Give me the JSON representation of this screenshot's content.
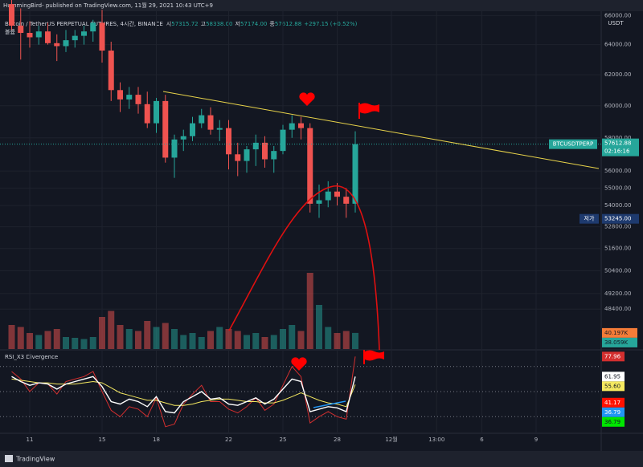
{
  "header": {
    "published": "HummingBird- published on TradingView.com, 11월 29, 2021 10:43 UTC+9"
  },
  "legend": {
    "symbol": "Bitcoin / TetherUS PERPETUAL FUTURES, 4시간, BINANCE",
    "open_label": "시",
    "open": "57315.72",
    "high_label": "고",
    "high": "58338.00",
    "low_label": "저",
    "low": "57174.00",
    "close_label": "종",
    "close": "57612.88",
    "change": "+297.15 (+0.52%)",
    "volume_label": "볼륨"
  },
  "footer": {
    "brand": "TradingView"
  },
  "chart_data": {
    "type": "candlestick",
    "scale": "log",
    "up_color": "#26a69a",
    "down_color": "#ef5350",
    "grid": true,
    "categories": [
      null,
      null,
      "11",
      null,
      null,
      null,
      null,
      null,
      null,
      null,
      "15",
      null,
      null,
      null,
      null,
      null,
      "18",
      null,
      null,
      null,
      null,
      null,
      null,
      null,
      "22",
      null,
      null,
      null,
      null,
      null,
      "25",
      null,
      null,
      null,
      null,
      null,
      "28",
      null,
      null,
      null,
      null,
      null,
      "12월",
      null,
      null,
      null,
      null,
      "13:00",
      null,
      null,
      null,
      null,
      "6",
      null,
      null,
      null,
      null,
      null,
      "9",
      null,
      null
    ],
    "open": [
      66800,
      65300,
      64800,
      64500,
      64900,
      64100,
      63900,
      64300,
      64600,
      64900,
      65500,
      63600,
      61000,
      60400,
      60700,
      60100,
      58900,
      60300,
      56800,
      57900,
      58100,
      58900,
      59400,
      58500,
      58600,
      57000,
      56600,
      57300,
      57700,
      56700,
      57200,
      58500,
      58900,
      58600,
      54100,
      54300,
      54800,
      54500,
      54100,
      null,
      null,
      null,
      null,
      null,
      null,
      null,
      null,
      null,
      null,
      null,
      null,
      null,
      null,
      null,
      null,
      null,
      null,
      null,
      null,
      null,
      null
    ],
    "high": [
      68500,
      66500,
      65600,
      65300,
      65500,
      64700,
      65000,
      65000,
      65300,
      65700,
      66400,
      64200,
      61500,
      61200,
      61200,
      60900,
      60500,
      60700,
      58200,
      58500,
      59300,
      59800,
      59900,
      59100,
      59100,
      57700,
      57500,
      58200,
      58100,
      57500,
      58800,
      59400,
      59300,
      58900,
      55200,
      55400,
      55300,
      55000,
      58400,
      null,
      null,
      null,
      null,
      null,
      null,
      null,
      null,
      null,
      null,
      null,
      null,
      null,
      null,
      null,
      null,
      null,
      null,
      null,
      null,
      null,
      null
    ],
    "low": [
      65000,
      63000,
      63800,
      64000,
      64000,
      62900,
      63500,
      63800,
      64000,
      64200,
      62800,
      60300,
      59600,
      59800,
      59500,
      58600,
      58300,
      56500,
      55600,
      57200,
      57800,
      58600,
      58200,
      57800,
      56100,
      55700,
      55900,
      56300,
      56200,
      55900,
      57000,
      58000,
      57900,
      53600,
      53300,
      53900,
      54000,
      53300,
      53600,
      null,
      null,
      null,
      null,
      null,
      null,
      null,
      null,
      null,
      null,
      null,
      null,
      null,
      null,
      null,
      null,
      null,
      null,
      null,
      null,
      null,
      null
    ],
    "close": [
      65300,
      64800,
      64500,
      64900,
      64100,
      63900,
      64300,
      64600,
      64900,
      65500,
      63600,
      61000,
      60400,
      60700,
      60100,
      58900,
      60300,
      56800,
      57900,
      58100,
      58900,
      59400,
      58500,
      58600,
      57000,
      56600,
      57300,
      57700,
      56700,
      57200,
      58500,
      58900,
      58600,
      54100,
      54300,
      54800,
      54500,
      54100,
      57612.88,
      null,
      null,
      null,
      null,
      null,
      null,
      null,
      null,
      null,
      null,
      null,
      null,
      null,
      null,
      null,
      null,
      null,
      null,
      null,
      null,
      null,
      null
    ],
    "ylim": [
      46400,
      66300
    ],
    "y_unit": "USDT",
    "yticks": [
      {
        "value": 66000,
        "label": "66000.00"
      },
      {
        "value": 64000,
        "label": "64000.00"
      },
      {
        "value": 62000,
        "label": "62000.00"
      },
      {
        "value": 60000,
        "label": "60000.00"
      },
      {
        "value": 58000,
        "label": "58000.00"
      },
      {
        "value": 56000,
        "label": "56000.00"
      },
      {
        "value": 55000,
        "label": "55000.00"
      },
      {
        "value": 54000,
        "label": "54000.00"
      },
      {
        "value": 52800,
        "label": "52800.00"
      },
      {
        "value": 51600,
        "label": "51600.00"
      },
      {
        "value": 50400,
        "label": "50400.00"
      },
      {
        "value": 49200,
        "label": "49200.00"
      },
      {
        "value": 48400,
        "label": "48400.00"
      }
    ],
    "last_price": 57612.88,
    "symbol_tag": "BTCUSDTPERP",
    "countdown": "02:16:16",
    "low_marker": {
      "label": "저가",
      "value": 53245,
      "value_label": "53245.00"
    },
    "volume": {
      "ylim": [
        0,
        200000
      ],
      "values": [
        60000,
        55000,
        40000,
        35000,
        45000,
        50000,
        30000,
        28000,
        25000,
        30000,
        80000,
        95000,
        60000,
        50000,
        45000,
        70000,
        55000,
        65000,
        50000,
        35000,
        40000,
        30000,
        45000,
        55000,
        50000,
        45000,
        35000,
        40000,
        30000,
        35000,
        50000,
        60000,
        45000,
        190000,
        110000,
        55000,
        40000,
        45000,
        40197,
        null,
        null,
        null,
        null,
        null,
        null,
        null,
        null,
        null,
        null,
        null,
        null,
        null,
        null,
        null,
        null,
        null,
        null,
        null,
        null,
        null,
        null
      ],
      "labels": [
        {
          "value": 40197,
          "label": "40.197K",
          "color": "#f57c38"
        },
        {
          "value": 38059,
          "label": "38.059K",
          "color": "#26a69a"
        }
      ]
    },
    "rsi": {
      "title": "RSI_X3 Divergence",
      "ylim": [
        18,
        82
      ],
      "levels": [
        30,
        50,
        70
      ],
      "series": [
        {
          "color": "#d32f2f",
          "values": [
            66,
            60,
            50,
            57,
            56,
            48,
            58,
            60,
            62,
            66,
            50,
            35,
            30,
            38,
            36,
            30,
            45,
            22,
            24,
            40,
            48,
            55,
            42,
            42,
            36,
            33,
            38,
            45,
            35,
            40,
            55,
            70,
            62,
            25,
            30,
            34,
            30,
            28,
            77.96,
            null,
            null,
            null,
            null,
            null,
            null,
            null,
            null,
            null,
            null,
            null,
            null,
            null,
            null,
            null,
            null,
            null,
            null,
            null,
            null,
            null,
            null
          ]
        },
        {
          "color": "#f5e960",
          "values": [
            60,
            59,
            58,
            57,
            57,
            56,
            56,
            56,
            57,
            58,
            57,
            53,
            49,
            47,
            45,
            43,
            43,
            41,
            39,
            39,
            40,
            42,
            43,
            44,
            44,
            43,
            42,
            42,
            41,
            41,
            43,
            46,
            49,
            46,
            43,
            41,
            40,
            38,
            55.6,
            null,
            null,
            null,
            null,
            null,
            null,
            null,
            null,
            null,
            null,
            null,
            null,
            null,
            null,
            null,
            null,
            null,
            null,
            null,
            null,
            null,
            null
          ],
          "value_labels": [
            null,
            null,
            null,
            null,
            null,
            null,
            null,
            null,
            null,
            null,
            null,
            null,
            null,
            null,
            null,
            null,
            null,
            null,
            null,
            null,
            null,
            null,
            null,
            null,
            null,
            null,
            null,
            null,
            null,
            null,
            null,
            null,
            null,
            null,
            null,
            null,
            null,
            null,
            "55.60",
            null,
            null,
            null,
            null,
            null,
            null,
            null,
            null,
            null,
            null,
            null,
            null,
            null,
            null,
            null,
            null,
            null,
            null,
            null,
            null,
            null,
            null
          ]
        },
        {
          "color": "#ffffff",
          "values": [
            62,
            58,
            55,
            57,
            56,
            52,
            56,
            58,
            60,
            62,
            54,
            42,
            40,
            44,
            42,
            38,
            46,
            34,
            33,
            42,
            46,
            50,
            44,
            45,
            40,
            39,
            42,
            45,
            40,
            44,
            52,
            60,
            58,
            34,
            36,
            38,
            37,
            34,
            61.95,
            null,
            null,
            null,
            null,
            null,
            null,
            null,
            null,
            null,
            null,
            null,
            null,
            null,
            null,
            null,
            null,
            null,
            null,
            null,
            null,
            null,
            null
          ]
        }
      ],
      "price_lines": [
        {
          "value": 41.17,
          "color": "#ff1100"
        },
        {
          "value": 36.79,
          "color": "#2196f3"
        },
        {
          "value": 36.79,
          "color": "#00e600"
        }
      ]
    }
  }
}
